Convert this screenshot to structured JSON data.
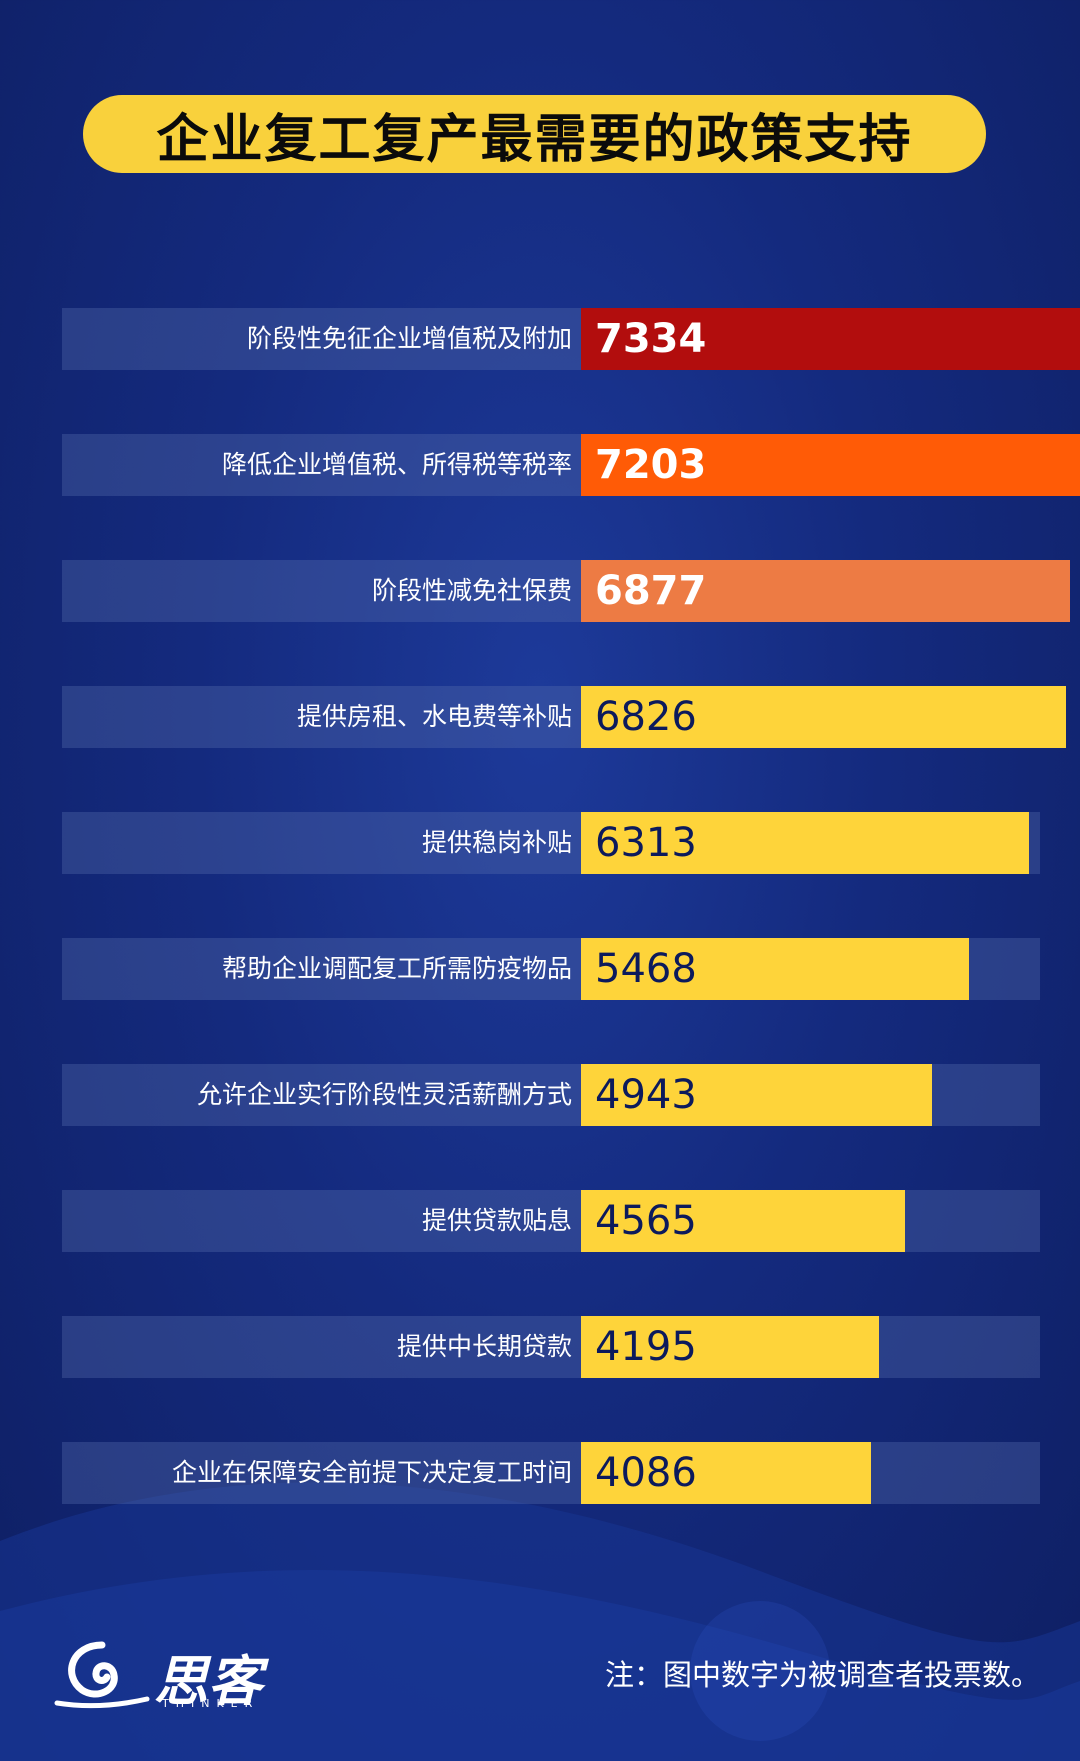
{
  "title": "企业复工复产最需要的政策支持",
  "chart_data": {
    "type": "bar",
    "orientation": "horizontal",
    "categories": [
      "阶段性免征企业增值税及附加",
      "降低企业增值税、所得税等税率",
      "阶段性减免社保费",
      "提供房租、水电费等补贴",
      "提供稳岗补贴",
      "帮助企业调配复工所需防疫物品",
      "允许企业实行阶段性灵活薪酬方式",
      "提供贷款贴息",
      "提供中长期贷款",
      "企业在保障安全前提下决定复工时间"
    ],
    "values": [
      7334,
      7203,
      6877,
      6826,
      6313,
      5468,
      4943,
      4565,
      4195,
      4086
    ],
    "bar_colors": [
      "#b20d0d",
      "#ff5b06",
      "#ed7b44",
      "#fed43a",
      "#fed43a",
      "#fed43a",
      "#fed43a",
      "#fed43a",
      "#fed43a",
      "#fed43a"
    ],
    "value_colors": [
      "#ffffff",
      "#ffffff",
      "#ffffff",
      "#0c1a5c",
      "#0c1a5c",
      "#0c1a5c",
      "#0c1a5c",
      "#0c1a5c",
      "#0c1a5c",
      "#0c1a5c"
    ],
    "xlim": [
      0,
      7334
    ],
    "grid": false,
    "legend": "none"
  },
  "footer": {
    "note": "注：图中数字为被调查者投票数。"
  },
  "logo": {
    "name_cn": "思客",
    "name_en": "THINKER"
  },
  "colors": {
    "background": "#142a7e",
    "title_pill": "#f9d13c",
    "track": "#4a5fa3"
  }
}
